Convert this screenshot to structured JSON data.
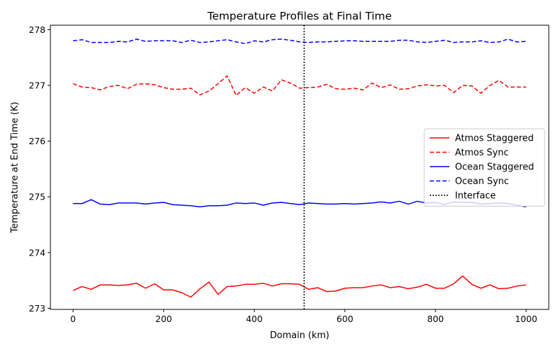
{
  "chart_data": {
    "type": "line",
    "title": "Temperature Profiles at Final Time",
    "xlabel": "Domain (km)",
    "ylabel": "Temperature at End Time (K)",
    "xlim": [
      -50,
      1050
    ],
    "ylim": [
      272.98,
      278.08
    ],
    "xticks": [
      0,
      200,
      400,
      600,
      800,
      1000
    ],
    "yticks": [
      273,
      274,
      275,
      276,
      277,
      278
    ],
    "legend_position": "center-right",
    "x": [
      0,
      20,
      40,
      60,
      80,
      100,
      120,
      140,
      160,
      180,
      200,
      220,
      240,
      260,
      280,
      300,
      320,
      340,
      360,
      380,
      400,
      420,
      440,
      460,
      480,
      500,
      520,
      540,
      560,
      580,
      600,
      620,
      640,
      660,
      680,
      700,
      720,
      740,
      760,
      780,
      800,
      820,
      840,
      860,
      880,
      900,
      920,
      940,
      960,
      980,
      1000
    ],
    "series": [
      {
        "name": "Atmos Staggered",
        "color": "#ff0000",
        "style": "solid",
        "values": [
          273.32,
          273.39,
          273.34,
          273.42,
          273.42,
          273.41,
          273.42,
          273.45,
          273.36,
          273.44,
          273.33,
          273.33,
          273.28,
          273.2,
          273.35,
          273.47,
          273.25,
          273.39,
          273.4,
          273.43,
          273.43,
          273.45,
          273.4,
          273.44,
          273.44,
          273.43,
          273.34,
          273.37,
          273.3,
          273.31,
          273.36,
          273.37,
          273.37,
          273.4,
          273.42,
          273.37,
          273.39,
          273.35,
          273.38,
          273.43,
          273.36,
          273.36,
          273.44,
          273.58,
          273.43,
          273.36,
          273.42,
          273.35,
          273.36,
          273.4,
          273.42
        ]
      },
      {
        "name": "Atmos Sync",
        "color": "#ff0000",
        "style": "dashed",
        "values": [
          277.03,
          276.97,
          276.96,
          276.92,
          276.98,
          277.0,
          276.94,
          277.02,
          277.03,
          277.01,
          276.96,
          276.93,
          276.93,
          276.95,
          276.83,
          276.9,
          277.03,
          277.17,
          276.82,
          276.96,
          276.86,
          276.97,
          276.9,
          277.1,
          277.04,
          276.95,
          276.96,
          276.97,
          277.02,
          276.94,
          276.93,
          276.95,
          276.92,
          277.04,
          276.96,
          277.01,
          276.93,
          276.94,
          276.99,
          277.01,
          276.99,
          277.0,
          276.87,
          277.0,
          276.99,
          276.86,
          277.0,
          277.09,
          276.97,
          276.97,
          276.97
        ]
      },
      {
        "name": "Ocean Staggered",
        "color": "#0000ff",
        "style": "solid",
        "values": [
          274.88,
          274.88,
          274.95,
          274.87,
          274.86,
          274.89,
          274.89,
          274.89,
          274.87,
          274.89,
          274.9,
          274.86,
          274.85,
          274.84,
          274.82,
          274.84,
          274.84,
          274.85,
          274.89,
          274.88,
          274.89,
          274.85,
          274.89,
          274.9,
          274.88,
          274.86,
          274.89,
          274.88,
          274.87,
          274.87,
          274.88,
          274.87,
          274.88,
          274.89,
          274.91,
          274.89,
          274.92,
          274.87,
          274.92,
          274.89,
          274.9,
          274.86,
          274.91,
          274.9,
          274.9,
          274.87,
          274.88,
          274.89,
          274.88,
          274.85,
          274.82
        ]
      },
      {
        "name": "Ocean Sync",
        "color": "#0000ff",
        "style": "dashed",
        "values": [
          277.8,
          277.82,
          277.77,
          277.77,
          277.77,
          277.79,
          277.78,
          277.83,
          277.79,
          277.8,
          277.8,
          277.8,
          277.77,
          277.81,
          277.77,
          277.78,
          277.8,
          277.82,
          277.78,
          277.75,
          277.8,
          277.78,
          277.82,
          277.83,
          277.81,
          277.78,
          277.77,
          277.78,
          277.78,
          277.79,
          277.8,
          277.8,
          277.79,
          277.79,
          277.79,
          277.79,
          277.81,
          277.81,
          277.78,
          277.77,
          277.79,
          277.81,
          277.77,
          277.78,
          277.78,
          277.8,
          277.77,
          277.78,
          277.83,
          277.78,
          277.79
        ]
      }
    ],
    "interface": {
      "name": "Interface",
      "x": 510,
      "color": "#000000",
      "style": "dotted"
    }
  }
}
